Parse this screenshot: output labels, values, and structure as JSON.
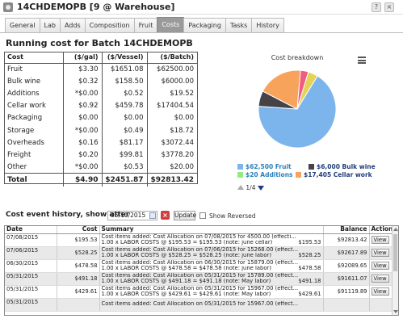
{
  "window": {
    "title": "14CHDEMOPB [9 @ Warehouse]",
    "help_glyph": "?",
    "close_glyph": "×",
    "app_icon": "circle-app-icon"
  },
  "tabs": [
    "General",
    "Lab",
    "Adds",
    "Composition",
    "Fruit",
    "Costs",
    "Packaging",
    "Tasks",
    "History"
  ],
  "active_tab": "Costs",
  "running_cost": {
    "heading": "Running cost for Batch 14CHDEMOPB",
    "columns": [
      "Cost",
      "($/gal)",
      "($/Vessel)",
      "($/Batch)"
    ],
    "rows": [
      [
        "Fruit",
        "$3.30",
        "$1651.08",
        "$62500.00"
      ],
      [
        "Bulk wine",
        "$0.32",
        "$158.50",
        "$6000.00"
      ],
      [
        "Additions",
        "*$0.00",
        "$0.52",
        "$19.52"
      ],
      [
        "Cellar work",
        "$0.92",
        "$459.78",
        "$17404.54"
      ],
      [
        "Packaging",
        "$0.00",
        "$0.00",
        "$0.00"
      ],
      [
        "Storage",
        "*$0.00",
        "$0.49",
        "$18.72"
      ],
      [
        "Overheads",
        "$0.16",
        "$81.17",
        "$3072.44"
      ],
      [
        "Freight",
        "$0.20",
        "$99.81",
        "$3778.20"
      ],
      [
        "Other",
        "*$0.00",
        "$0.53",
        "$20.00"
      ]
    ],
    "total": [
      "Total",
      "$4.90",
      "$2451.87",
      "$92813.42"
    ]
  },
  "chart_data": {
    "type": "pie",
    "title": "Cost breakdown",
    "slices": [
      {
        "label": "$62,500 Fruit",
        "value": 62500,
        "color": "#7cb5ec"
      },
      {
        "label": "$6,000 Bulk wine",
        "value": 6000,
        "color": "#434348"
      },
      {
        "label": "$20 Additions",
        "value": 20,
        "color": "#90ed7d"
      },
      {
        "label": "$17,405 Cellar work",
        "value": 17405,
        "color": "#f7a35c"
      },
      {
        "label": "",
        "value": 3072,
        "color": "#f15c80"
      },
      {
        "label": "",
        "value": 3778,
        "color": "#e4d354"
      }
    ],
    "legend_page": "1/4",
    "legend_placement": "bottom"
  },
  "history": {
    "heading": "Cost event history, show after",
    "date_value": "05/10/2015",
    "clear_glyph": "×",
    "update_label": "Update",
    "show_reversed_label": "Show Reversed",
    "columns": [
      "Date",
      "Cost",
      "Summary",
      "Balance",
      "Action"
    ],
    "view_label": "View",
    "rows": [
      {
        "date": "07/08/2015",
        "cost": "$195.53",
        "line1": "Cost items added: Cost Allocation on 07/08/2015 for 4500.00 (effecti...",
        "line2": "1.00 x LABOR COSTS @ $195.53 = $195.53 (note: june cellar)",
        "inline": "$195.53",
        "balance": "$92813.42"
      },
      {
        "date": "07/06/2015",
        "cost": "$528.25",
        "line1": "Cost items added: Cost Allocation on 07/06/2015 for 15268.00 (effect...",
        "line2": "1.00 x LABOR COSTS @ $528.25 = $528.25 (note: june labor)",
        "inline": "$528.25",
        "balance": "$92617.89"
      },
      {
        "date": "06/30/2015",
        "cost": "$478.58",
        "line1": "Cost items added: Cost Allocation on 06/30/2015 for 15879.00 (effect...",
        "line2": "1.00 x LABOR COSTS @ $478.58 = $478.58 (note: june labor)",
        "inline": "$478.58",
        "balance": "$92089.65"
      },
      {
        "date": "05/31/2015",
        "cost": "$491.18",
        "line1": "Cost items added: Cost Allocation on 05/31/2015 for 15789.00 (effect...",
        "line2": "1.00 x LABOR COSTS @ $491.18 = $491.18 (note: May labor)",
        "inline": "$491.18",
        "balance": "$91611.07"
      },
      {
        "date": "05/31/2015",
        "cost": "$429.61",
        "line1": "Cost items added: Cost Allocation on 05/31/2015 for 15967.00 (effect...",
        "line2": "1.00 x LABOR COSTS @ $429.61 = $429.61 (note: May labor)",
        "inline": "$429.61",
        "balance": "$91119.89"
      },
      {
        "date": "05/31/2015",
        "cost": "",
        "line1": "Cost items added: Cost Allocation on 05/31/2015 for 15967.00 (effect...",
        "line2": "",
        "inline": "",
        "balance": ""
      }
    ]
  }
}
